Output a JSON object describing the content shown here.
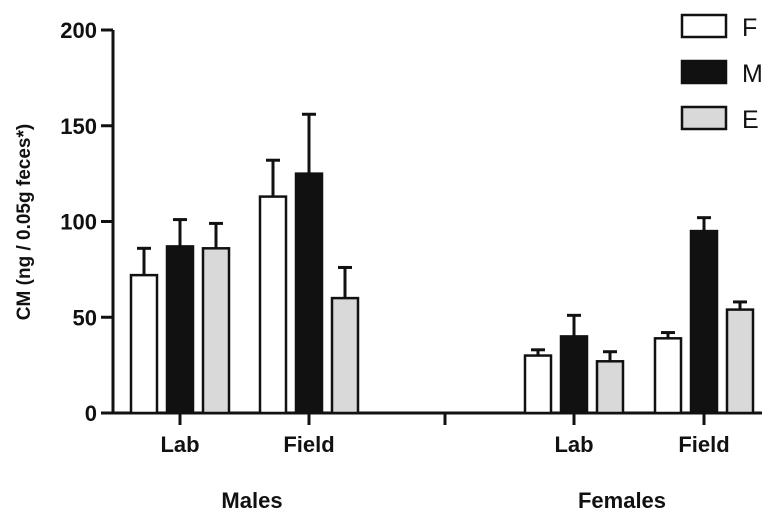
{
  "chart_data": {
    "type": "bar",
    "ylabel": "CM (ng / 0.05g feces*)",
    "ylim": [
      0,
      200
    ],
    "yticks": [
      0,
      50,
      100,
      150,
      200
    ],
    "groups": [
      {
        "label": "Males",
        "categories": [
          "Lab",
          "Field"
        ]
      },
      {
        "label": "Females",
        "categories": [
          "Lab",
          "Field"
        ]
      }
    ],
    "categories": [
      "Lab",
      "Field",
      "Lab",
      "Field"
    ],
    "series": [
      {
        "name": "F",
        "color": "#ffffff",
        "values": [
          72,
          113,
          30,
          39
        ],
        "errors": [
          14,
          19,
          3,
          3
        ]
      },
      {
        "name": "M",
        "color": "#111111",
        "values": [
          87,
          125,
          40,
          95
        ],
        "errors": [
          14,
          31,
          11,
          7
        ]
      },
      {
        "name": "E",
        "color": "#d9d9d9",
        "values": [
          86,
          60,
          27,
          54
        ],
        "errors": [
          13,
          16,
          5,
          4
        ]
      }
    ],
    "legend": "top-right",
    "grid": false
  }
}
